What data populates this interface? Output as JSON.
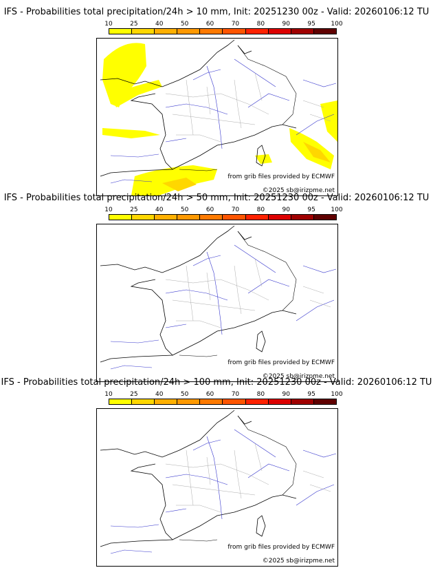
{
  "colorbar": {
    "labels": [
      "10",
      "25",
      "40",
      "50",
      "60",
      "70",
      "80",
      "90",
      "95",
      "100"
    ],
    "colors": [
      "#ffff00",
      "#ffd700",
      "#ffb000",
      "#ff9900",
      "#ff7a00",
      "#ff5500",
      "#ff2200",
      "#dd0000",
      "#a00000",
      "#600000"
    ]
  },
  "credits": {
    "source": "from grib files provided by ECMWF",
    "copyright": "©2025 sb@irizpme.net"
  },
  "panels": [
    {
      "title": "IFS - Probabilities total precipitation/24h > 10 mm, Init: 20251230 00z - Valid: 20260106:12 TU",
      "threshold_mm": 10
    },
    {
      "title": "IFS - Probabilities total precipitation/24h > 50 mm, Init: 20251230 00z - Valid: 20260106:12 TU",
      "threshold_mm": 50
    },
    {
      "title": "IFS - Probabilities total precipitation/24h > 100 mm, Init: 20251230 00z - Valid: 20260106:12 TU",
      "threshold_mm": 100
    }
  ]
}
